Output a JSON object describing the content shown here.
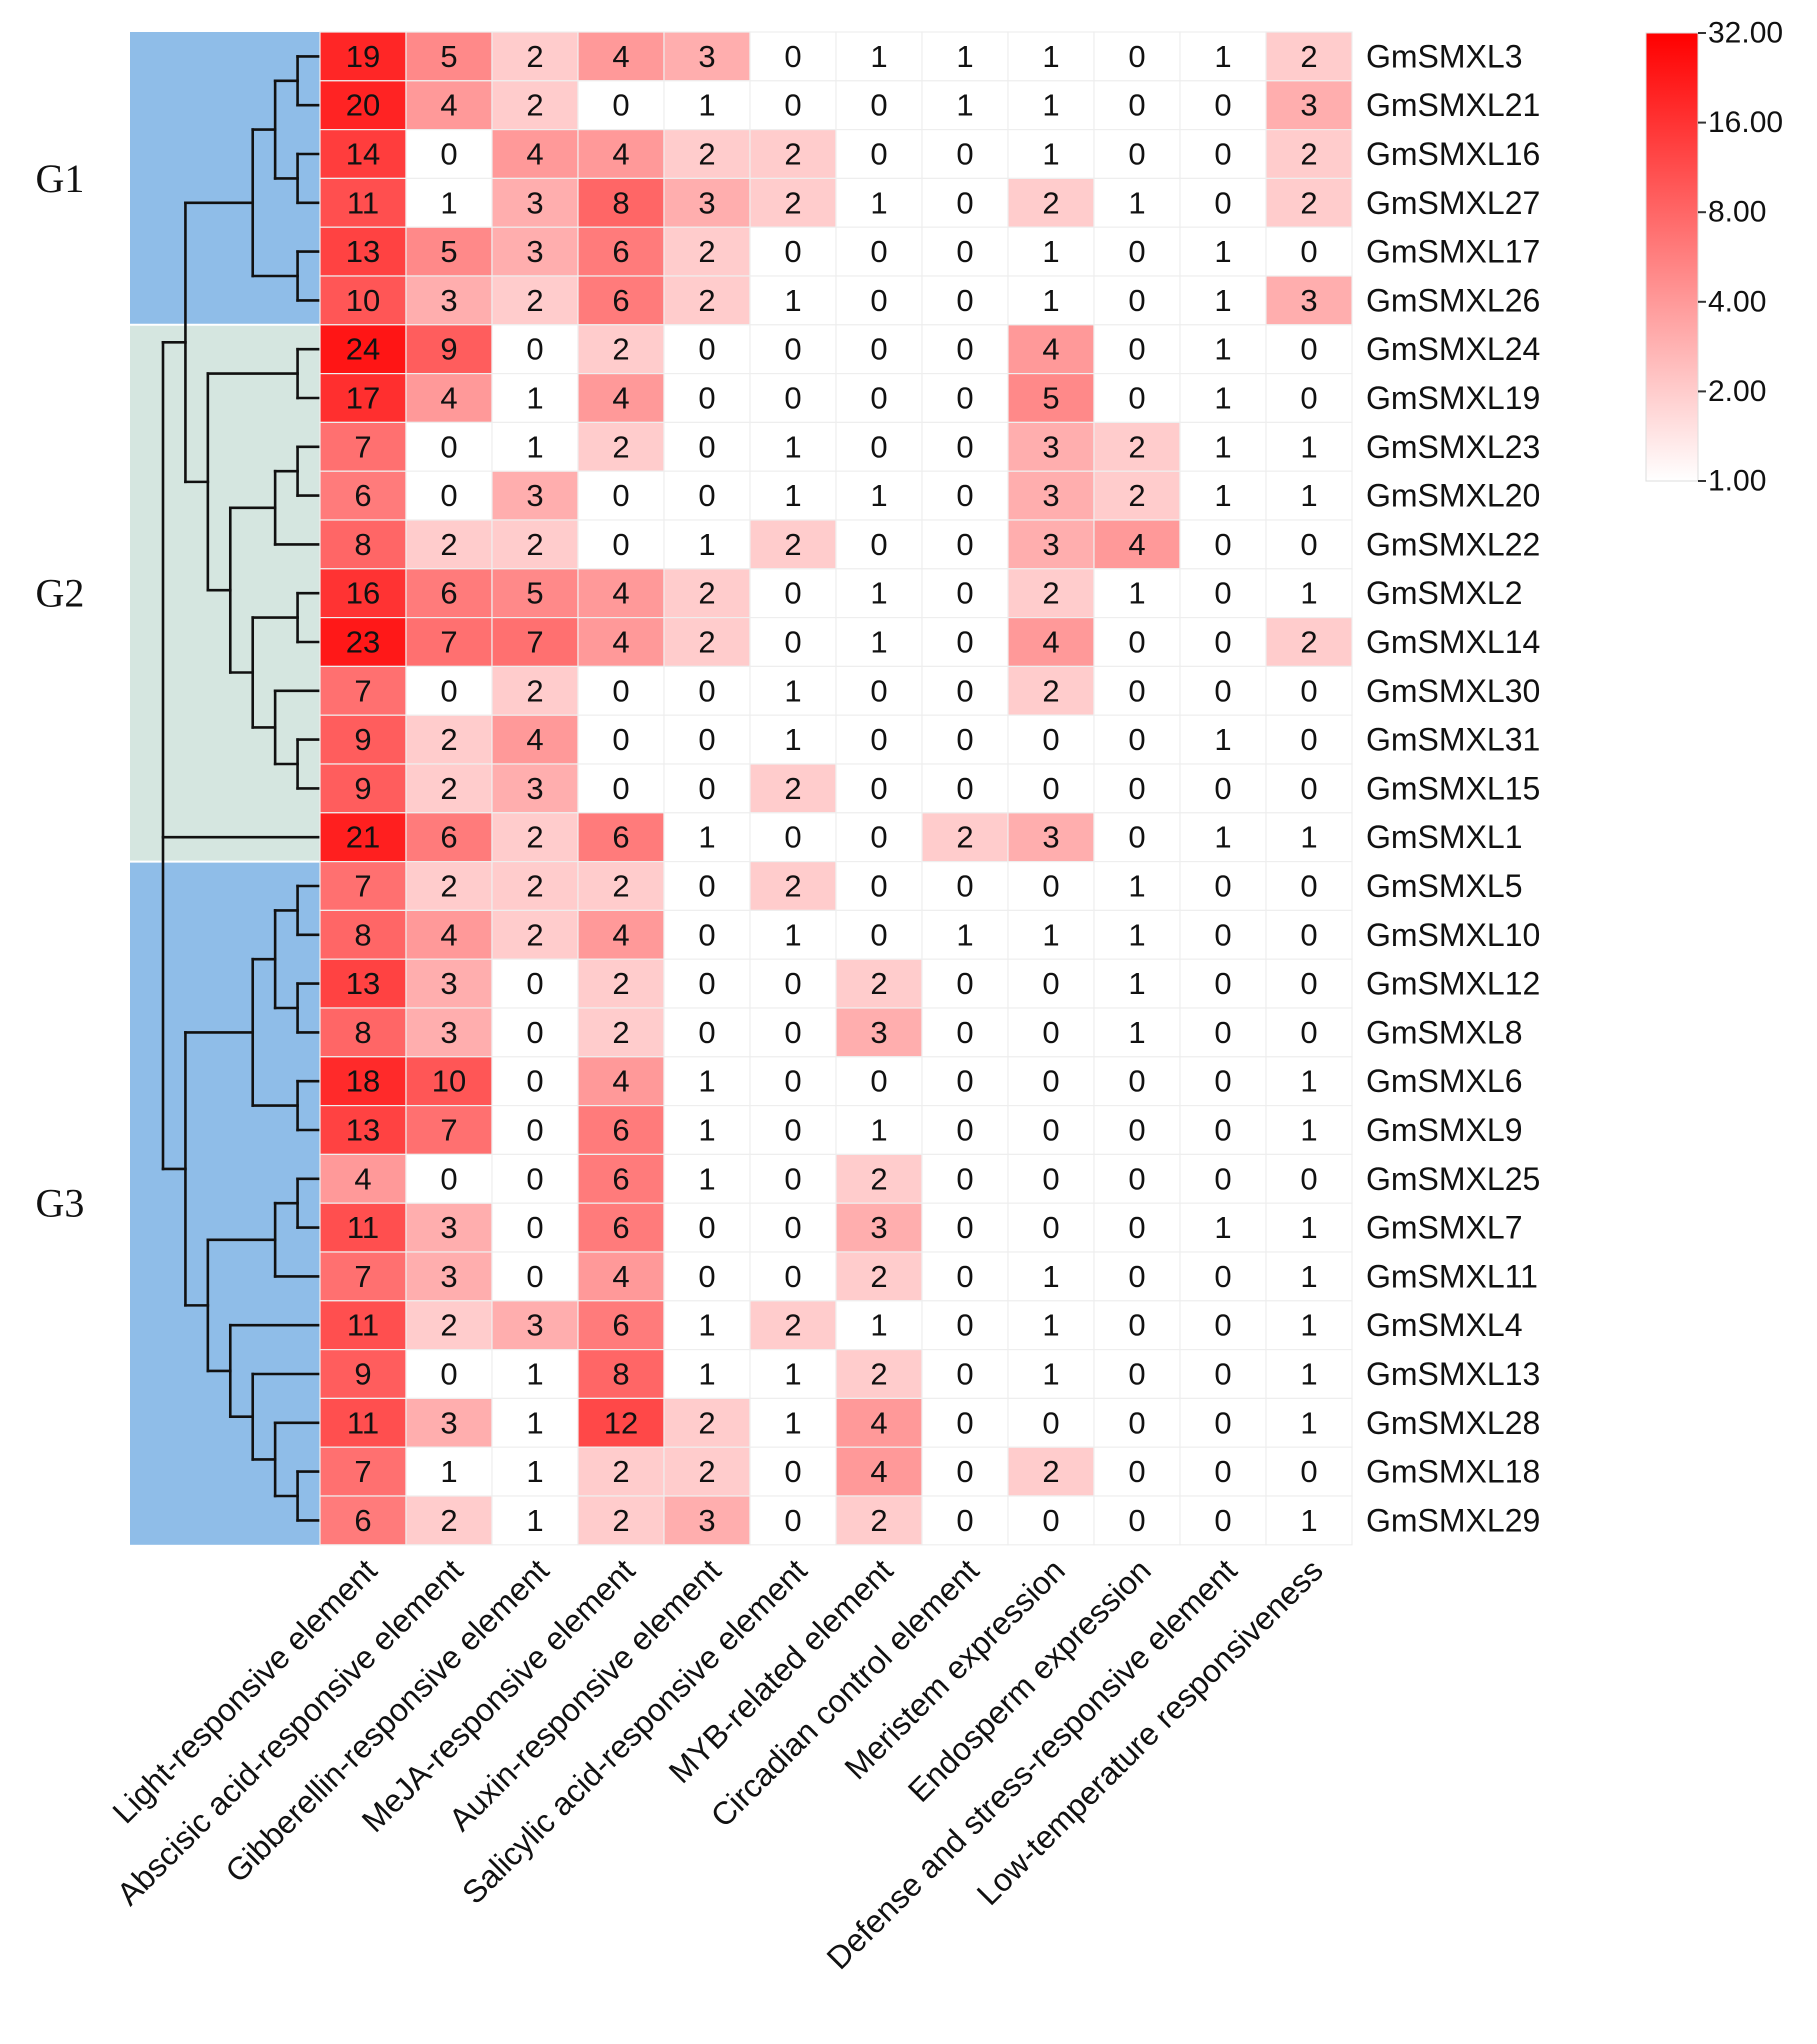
{
  "chart_data": {
    "type": "heatmap",
    "title": "",
    "columns": [
      "Light-responsive element",
      "Abscisic acid-responsive element",
      "Gibberellin-responsive element",
      "MeJA-responsive element",
      "Auxin-responsive element",
      "Salicylic acid-responsive element",
      "MYB-related element",
      "Circadian control element",
      "Meristem expression",
      "Endosperm expression",
      "Defense and stress-responsive element",
      "Low-temperature responsiveness"
    ],
    "rows": [
      "GmSMXL3",
      "GmSMXL21",
      "GmSMXL16",
      "GmSMXL27",
      "GmSMXL17",
      "GmSMXL26",
      "GmSMXL24",
      "GmSMXL19",
      "GmSMXL23",
      "GmSMXL20",
      "GmSMXL22",
      "GmSMXL2",
      "GmSMXL14",
      "GmSMXL30",
      "GmSMXL31",
      "GmSMXL15",
      "GmSMXL1",
      "GmSMXL5",
      "GmSMXL10",
      "GmSMXL12",
      "GmSMXL8",
      "GmSMXL6",
      "GmSMXL9",
      "GmSMXL25",
      "GmSMXL7",
      "GmSMXL11",
      "GmSMXL4",
      "GmSMXL13",
      "GmSMXL28",
      "GmSMXL18",
      "GmSMXL29"
    ],
    "values": [
      [
        19,
        5,
        2,
        4,
        3,
        0,
        1,
        1,
        1,
        0,
        1,
        2
      ],
      [
        20,
        4,
        2,
        0,
        1,
        0,
        0,
        1,
        1,
        0,
        0,
        3
      ],
      [
        14,
        0,
        4,
        4,
        2,
        2,
        0,
        0,
        1,
        0,
        0,
        2
      ],
      [
        11,
        1,
        3,
        8,
        3,
        2,
        1,
        0,
        2,
        1,
        0,
        2
      ],
      [
        13,
        5,
        3,
        6,
        2,
        0,
        0,
        0,
        1,
        0,
        1,
        0
      ],
      [
        10,
        3,
        2,
        6,
        2,
        1,
        0,
        0,
        1,
        0,
        1,
        3
      ],
      [
        24,
        9,
        0,
        2,
        0,
        0,
        0,
        0,
        4,
        0,
        1,
        0
      ],
      [
        17,
        4,
        1,
        4,
        0,
        0,
        0,
        0,
        5,
        0,
        1,
        0
      ],
      [
        7,
        0,
        1,
        2,
        0,
        1,
        0,
        0,
        3,
        2,
        1,
        1
      ],
      [
        6,
        0,
        3,
        0,
        0,
        1,
        1,
        0,
        3,
        2,
        1,
        1
      ],
      [
        8,
        2,
        2,
        0,
        1,
        2,
        0,
        0,
        3,
        4,
        0,
        0
      ],
      [
        16,
        6,
        5,
        4,
        2,
        0,
        1,
        0,
        2,
        1,
        0,
        1
      ],
      [
        23,
        7,
        7,
        4,
        2,
        0,
        1,
        0,
        4,
        0,
        0,
        2
      ],
      [
        7,
        0,
        2,
        0,
        0,
        1,
        0,
        0,
        2,
        0,
        0,
        0
      ],
      [
        9,
        2,
        4,
        0,
        0,
        1,
        0,
        0,
        0,
        0,
        1,
        0
      ],
      [
        9,
        2,
        3,
        0,
        0,
        2,
        0,
        0,
        0,
        0,
        0,
        0
      ],
      [
        21,
        6,
        2,
        6,
        1,
        0,
        0,
        2,
        3,
        0,
        1,
        1
      ],
      [
        7,
        2,
        2,
        2,
        0,
        2,
        0,
        0,
        0,
        1,
        0,
        0
      ],
      [
        8,
        4,
        2,
        4,
        0,
        1,
        0,
        1,
        1,
        1,
        0,
        0
      ],
      [
        13,
        3,
        0,
        2,
        0,
        0,
        2,
        0,
        0,
        1,
        0,
        0
      ],
      [
        8,
        3,
        0,
        2,
        0,
        0,
        3,
        0,
        0,
        1,
        0,
        0
      ],
      [
        18,
        10,
        0,
        4,
        1,
        0,
        0,
        0,
        0,
        0,
        0,
        1
      ],
      [
        13,
        7,
        0,
        6,
        1,
        0,
        1,
        0,
        0,
        0,
        0,
        1
      ],
      [
        4,
        0,
        0,
        6,
        1,
        0,
        2,
        0,
        0,
        0,
        0,
        0
      ],
      [
        11,
        3,
        0,
        6,
        0,
        0,
        3,
        0,
        0,
        0,
        1,
        1
      ],
      [
        7,
        3,
        0,
        4,
        0,
        0,
        2,
        0,
        1,
        0,
        0,
        1
      ],
      [
        11,
        2,
        3,
        6,
        1,
        2,
        1,
        0,
        1,
        0,
        0,
        1
      ],
      [
        9,
        0,
        1,
        8,
        1,
        1,
        2,
        0,
        1,
        0,
        0,
        1
      ],
      [
        11,
        3,
        1,
        12,
        2,
        1,
        4,
        0,
        0,
        0,
        0,
        1
      ],
      [
        7,
        1,
        1,
        2,
        2,
        0,
        4,
        0,
        2,
        0,
        0,
        0
      ],
      [
        6,
        2,
        1,
        2,
        3,
        0,
        2,
        0,
        0,
        0,
        0,
        1
      ]
    ],
    "groups": [
      {
        "label": "G1",
        "start_row": 0,
        "end_row": 5,
        "color": "#8fbde8"
      },
      {
        "label": "G2",
        "start_row": 6,
        "end_row": 16,
        "color": "#d5e6e0"
      },
      {
        "label": "G3",
        "start_row": 17,
        "end_row": 30,
        "color": "#8fbde8"
      }
    ],
    "colorscale": {
      "type": "log2",
      "min": 1,
      "max": 32,
      "low_color": "#ffffff",
      "high_color": "#ff0000",
      "tick_labels": [
        "32.00",
        "16.00",
        "8.00",
        "4.00",
        "2.00",
        "1.00"
      ],
      "tick_values": [
        32,
        16,
        8,
        4,
        2,
        1
      ]
    },
    "dendrogram_tree": [
      [
        [
          [
            [
              "GmSMXL3",
              "GmSMXL21"
            ],
            [
              "GmSMXL16",
              "GmSMXL27"
            ]
          ],
          [
            "GmSMXL17",
            "GmSMXL26"
          ]
        ],
        [
          [
            "GmSMXL24",
            "GmSMXL19"
          ],
          [
            [
              [
                "GmSMXL23",
                "GmSMXL20"
              ],
              "GmSMXL22"
            ],
            [
              [
                "GmSMXL2",
                "GmSMXL14"
              ],
              [
                "GmSMXL30",
                [
                  "GmSMXL31",
                  "GmSMXL15"
                ]
              ]
            ]
          ]
        ]
      ],
      "GmSMXL1",
      [
        [
          [
            [
              "GmSMXL5",
              "GmSMXL10"
            ],
            [
              "GmSMXL12",
              "GmSMXL8"
            ]
          ],
          [
            "GmSMXL6",
            "GmSMXL9"
          ]
        ],
        [
          [
            [
              "GmSMXL25",
              "GmSMXL7"
            ],
            "GmSMXL11"
          ],
          [
            "GmSMXL4",
            [
              "GmSMXL13",
              [
                "GmSMXL28",
                [
                  "GmSMXL18",
                  "GmSMXL29"
                ]
              ]
            ]
          ]
        ]
      ]
    ]
  }
}
